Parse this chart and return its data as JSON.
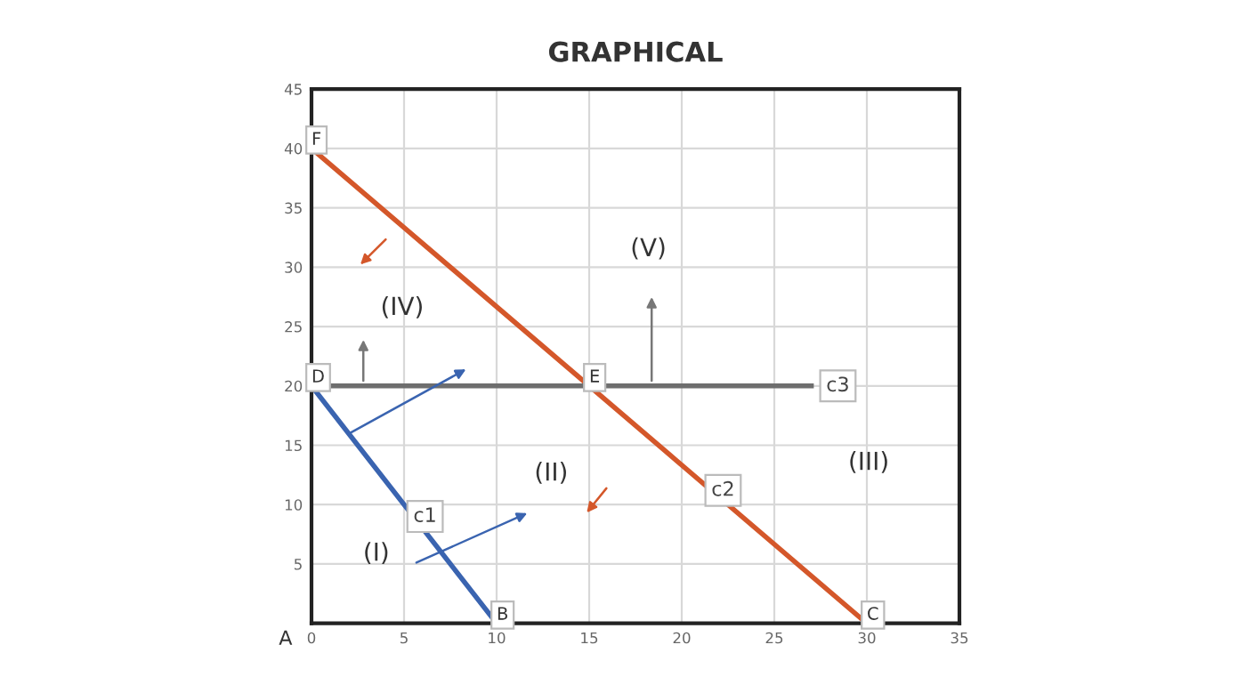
{
  "chart_data": {
    "type": "line",
    "title": "GRAPHICAL",
    "series": [
      {
        "name": "c1",
        "color": "#3a64b0",
        "x": [
          0,
          10
        ],
        "values": [
          20,
          0
        ]
      },
      {
        "name": "c2",
        "color": "#d4572a",
        "x": [
          0,
          30
        ],
        "values": [
          40,
          0
        ]
      },
      {
        "name": "c3",
        "color": "#6e6e6e",
        "x": [
          0,
          27
        ],
        "values": [
          20,
          20
        ]
      }
    ],
    "xlim": [
      0,
      35
    ],
    "ylim": [
      0,
      45
    ],
    "xticks": [
      0,
      5,
      10,
      15,
      20,
      25,
      30,
      35
    ],
    "yticks": [
      {
        "value": 0,
        "label": null
      },
      5,
      10,
      15,
      20,
      25,
      30,
      35,
      40,
      45
    ],
    "grid": true,
    "marker": "none",
    "line_style": "solid",
    "legend": false,
    "annotations": [
      "A",
      {
        "text": "B",
        "x": 10,
        "y": 0
      },
      {
        "text": "C",
        "x": 30,
        "y": 0
      },
      {
        "text": "D",
        "x": 0,
        "y": 20
      },
      {
        "text": "E",
        "x": 15,
        "y": 20
      },
      {
        "text": "F",
        "x": 0,
        "y": 40
      },
      "(I)",
      "(II)",
      "(III)",
      "(IV)",
      "(V)"
    ]
  }
}
